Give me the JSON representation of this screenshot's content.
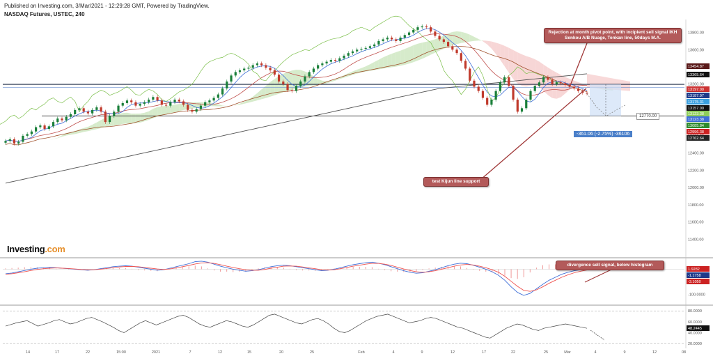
{
  "header": {
    "published": "Published on Investing.com, 3/Mar/2021 - 12:29:28 GMT, Powered by TradingView.",
    "symbol": "NASDAQ Futures, USTEC, 240"
  },
  "logo": {
    "text": "Investing",
    "suffix": ".com"
  },
  "annotations": {
    "rejection": "Rejection at month pivot point, with incipient sell signal IKH Senkou A/B Nuage, Tenkan line, 50days M.A.",
    "kijun": "test Kijun line support",
    "divergence": "divergence sell signal, below histogram"
  },
  "measure_label": "-361.06 (-2.75%) -36106",
  "target_label": "12770.00",
  "colors": {
    "up": "#26a69a",
    "down": "#ef5350",
    "candle_up": "#1a7f3a",
    "candle_down": "#c0392b",
    "kijun": "#c0504d",
    "tenkan": "#3f6fd8",
    "ma50": "#a0522d",
    "ma200": "#555555",
    "chikou": "#7bbf4a",
    "cloud_bull": "#cfe8c2",
    "cloud_bear": "#f6cfcf",
    "macd": "#3f6fd8",
    "signal": "#ef5350",
    "rsi": "#444444"
  },
  "chart_data": [
    {
      "type": "line",
      "name": "price",
      "x_ticks": [
        "14",
        "17",
        "22",
        "15:00",
        "2021",
        "7",
        "12",
        "15",
        "20",
        "25",
        "Feb",
        "4",
        "9",
        "12",
        "17",
        "22",
        "25",
        "Mar",
        "4",
        "9",
        "12",
        "08"
      ],
      "ylim": [
        11200,
        13950
      ],
      "y_ticks": [
        13800,
        13600,
        13400,
        13200,
        13000,
        12800,
        12600,
        12400,
        12200,
        12000,
        11800,
        11600,
        11400
      ],
      "price_levels": [
        {
          "label": "13454.87",
          "value": 13454.87,
          "color": "#5a1a1a"
        },
        {
          "label": "13365.64",
          "value": 13365.64,
          "color": "#111111"
        },
        {
          "label": "13197.00",
          "value": 13197.0,
          "color": "#cc3333"
        },
        {
          "label": "13187.97",
          "value": 13187.97,
          "color": "#1f3a8a"
        },
        {
          "label": "13175.31",
          "value": 13175.31,
          "color": "#3aa0e0"
        },
        {
          "label": "13157.00",
          "value": 13157.0,
          "color": "#111111"
        },
        {
          "label": "13123.38",
          "value": 13123.38,
          "color": "#8fce5a"
        },
        {
          "label": "13123.38",
          "value": 13123.38,
          "color": "#3f6fd8"
        },
        {
          "label": "13085.84",
          "value": 13085.84,
          "color": "#2e8b2e"
        },
        {
          "label": "12996.38",
          "value": 12996.38,
          "color": "#cc2222"
        },
        {
          "label": "12762.64",
          "value": 12762.64,
          "color": "#222222"
        }
      ],
      "horizontal_lines": [
        13197,
        12830
      ],
      "close": [
        12540,
        12560,
        12510,
        12530,
        12600,
        12620,
        12650,
        12700,
        12720,
        12680,
        12710,
        12760,
        12800,
        12780,
        12820,
        12850,
        12900,
        12920,
        12880,
        12860,
        12900,
        12930,
        12880,
        12760,
        12830,
        12880,
        12950,
        12980,
        13010,
        12990,
        12950,
        12970,
        12990,
        13020,
        13050,
        13010,
        12960,
        12950,
        12990,
        13020,
        13000,
        12960,
        12900,
        12880,
        12910,
        12950,
        12990,
        13010,
        13040,
        13080,
        13150,
        13230,
        13300,
        13340,
        13360,
        13380,
        13390,
        13420,
        13440,
        13420,
        13390,
        13360,
        13310,
        13230,
        13200,
        13130,
        13120,
        13180,
        13230,
        13290,
        13340,
        13380,
        13420,
        13440,
        13460,
        13480,
        13470,
        13500,
        13530,
        13560,
        13580,
        13600,
        13610,
        13620,
        13640,
        13660,
        13700,
        13720,
        13740,
        13720,
        13700,
        13740,
        13770,
        13800,
        13830,
        13860,
        13870,
        13860,
        13810,
        13760,
        13720,
        13690,
        13640,
        13600,
        13560,
        13470,
        13380,
        13240,
        13170,
        13120,
        13040,
        12960,
        13020,
        13120,
        13220,
        13280,
        13180,
        13020,
        12880,
        12920,
        13020,
        13120,
        13180,
        13220,
        13280,
        13250,
        13200,
        13220,
        13210,
        13190,
        13170,
        13150,
        13120,
        13100,
        13090
      ],
      "projection": [
        13090,
        12930,
        12830,
        12900,
        12960
      ]
    },
    {
      "type": "line",
      "name": "macd",
      "ylim": [
        -140,
        40
      ],
      "y_ticks": [
        -100
      ],
      "levels": [
        {
          "label": "1.9282",
          "color": "#cc2222"
        },
        {
          "label": "-1.1758",
          "color": "#1f3a8a"
        },
        {
          "label": "-3.1050",
          "color": "#cc2222"
        }
      ],
      "series": [
        {
          "values": [
            -18,
            -15,
            -10,
            -5,
            0,
            4,
            6,
            8,
            6,
            4,
            2,
            0,
            -2,
            -4,
            -2,
            2,
            6,
            10,
            12,
            14,
            12,
            8,
            4,
            0,
            -4,
            -2,
            4,
            10,
            16,
            22,
            30,
            32,
            28,
            20,
            12,
            6,
            0,
            -4,
            -8,
            -6,
            -2,
            4,
            10,
            14,
            16,
            14,
            10,
            6,
            2,
            -2,
            -6,
            -4,
            0,
            6,
            12,
            18,
            22,
            26,
            28,
            24,
            18,
            10,
            2,
            -6,
            -12,
            -16,
            -14,
            -8,
            -2,
            6,
            14,
            20,
            24,
            22,
            16,
            8,
            0,
            -10,
            -24,
            -44,
            -70,
            -92,
            -104,
            -96,
            -78,
            -60,
            -44,
            -32,
            -20,
            -12,
            -6,
            -2,
            -1
          ]
        },
        {
          "values": [
            -20,
            -18,
            -14,
            -10,
            -5,
            -1,
            2,
            4,
            5,
            4,
            3,
            1,
            -1,
            -2,
            -2,
            0,
            3,
            6,
            9,
            11,
            11,
            10,
            7,
            4,
            1,
            -1,
            1,
            5,
            10,
            15,
            21,
            25,
            26,
            23,
            18,
            12,
            7,
            2,
            -2,
            -4,
            -4,
            -1,
            4,
            8,
            12,
            13,
            12,
            9,
            5,
            2,
            -2,
            -3,
            -2,
            2,
            7,
            12,
            16,
            20,
            23,
            23,
            20,
            15,
            8,
            1,
            -5,
            -10,
            -12,
            -10,
            -6,
            0,
            6,
            12,
            17,
            19,
            17,
            12,
            6,
            -2,
            -12,
            -28,
            -48,
            -68,
            -84,
            -88,
            -82,
            -70,
            -56,
            -44,
            -32,
            -22,
            -14,
            -8,
            -3
          ]
        }
      ]
    },
    {
      "type": "line",
      "name": "rsi",
      "ylim": [
        15,
        88
      ],
      "y_ticks": [
        80,
        60,
        40,
        20
      ],
      "levels": [
        {
          "label": "48.2445",
          "color": "#111111"
        }
      ],
      "values": [
        52,
        55,
        58,
        60,
        62,
        57,
        52,
        55,
        58,
        62,
        64,
        60,
        56,
        58,
        62,
        66,
        68,
        64,
        60,
        55,
        50,
        44,
        40,
        46,
        52,
        58,
        62,
        58,
        54,
        58,
        62,
        66,
        70,
        72,
        68,
        62,
        56,
        52,
        50,
        54,
        58,
        62,
        60,
        56,
        52,
        50,
        54,
        60,
        66,
        72,
        74,
        70,
        66,
        62,
        58,
        56,
        60,
        64,
        66,
        62,
        56,
        48,
        42,
        40,
        44,
        50,
        56,
        62,
        66,
        70,
        72,
        74,
        70,
        66,
        62,
        58,
        60,
        62,
        66,
        68,
        66,
        62,
        58,
        54,
        50,
        48,
        44,
        40,
        36,
        32,
        30,
        36,
        42,
        48,
        52,
        56,
        54,
        50,
        46,
        44,
        48,
        50,
        52,
        54,
        56,
        54,
        52,
        50,
        48
      ]
    }
  ],
  "scales": {
    "macd_labels": [
      "-100.0000"
    ],
    "rsi_labels": [
      "80.0000",
      "60.0000",
      "40.0000",
      "20.0000"
    ],
    "price_labels": [
      "13800.00",
      "13600.00",
      "13400.00",
      "13200.00",
      "13000.00",
      "12800.00",
      "12600.00",
      "12400.00",
      "12200.00",
      "12000.00",
      "11800.00",
      "11600.00",
      "11400.00"
    ]
  }
}
